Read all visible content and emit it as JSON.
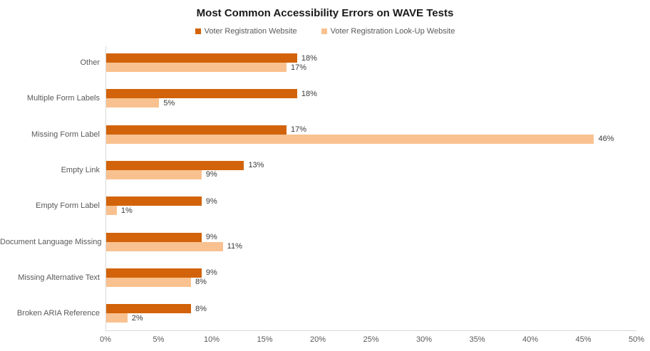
{
  "title": "Most Common Accessibility Errors on WAVE Tests",
  "colors": {
    "series_primary": "#D2630A",
    "series_secondary": "#F9C190",
    "axis_line": "#D9D9D9",
    "text_gray": "#595959",
    "value_text": "#3B3B3B"
  },
  "legend": {
    "items": [
      {
        "label": "Voter Registration Website",
        "color": "#D2630A"
      },
      {
        "label": "Voter Registration Look-Up Website",
        "color": "#F9C190"
      }
    ]
  },
  "chart_data": {
    "type": "bar",
    "orientation": "horizontal",
    "title": "Most Common Accessibility Errors on WAVE Tests",
    "categories": [
      "Other",
      "Multiple Form Labels",
      "Missing Form Label",
      "Empty Link",
      "Empty Form Label",
      "Document Language Missing",
      "Missing Alternative Text",
      "Broken ARIA Reference"
    ],
    "series": [
      {
        "name": "Voter Registration Website",
        "color": "#D2630A",
        "values": [
          18,
          18,
          17,
          13,
          9,
          9,
          9,
          8
        ],
        "labels": [
          "18%",
          "18%",
          "17%",
          "13%",
          "9%",
          "9%",
          "9%",
          "8%"
        ]
      },
      {
        "name": "Voter Registration Look-Up Website",
        "color": "#F9C190",
        "values": [
          17,
          5,
          46,
          9,
          1,
          11,
          8,
          2
        ],
        "labels": [
          "17%",
          "5%",
          "46%",
          "9%",
          "1%",
          "11%",
          "8%",
          "2%"
        ]
      }
    ],
    "xlim": [
      0,
      50
    ],
    "x_ticks": [
      "0%",
      "5%",
      "10%",
      "15%",
      "20%",
      "25%",
      "30%",
      "35%",
      "40%",
      "45%",
      "50%"
    ],
    "grid": "off",
    "legend_position": "top",
    "xlabel": "",
    "ylabel": ""
  }
}
